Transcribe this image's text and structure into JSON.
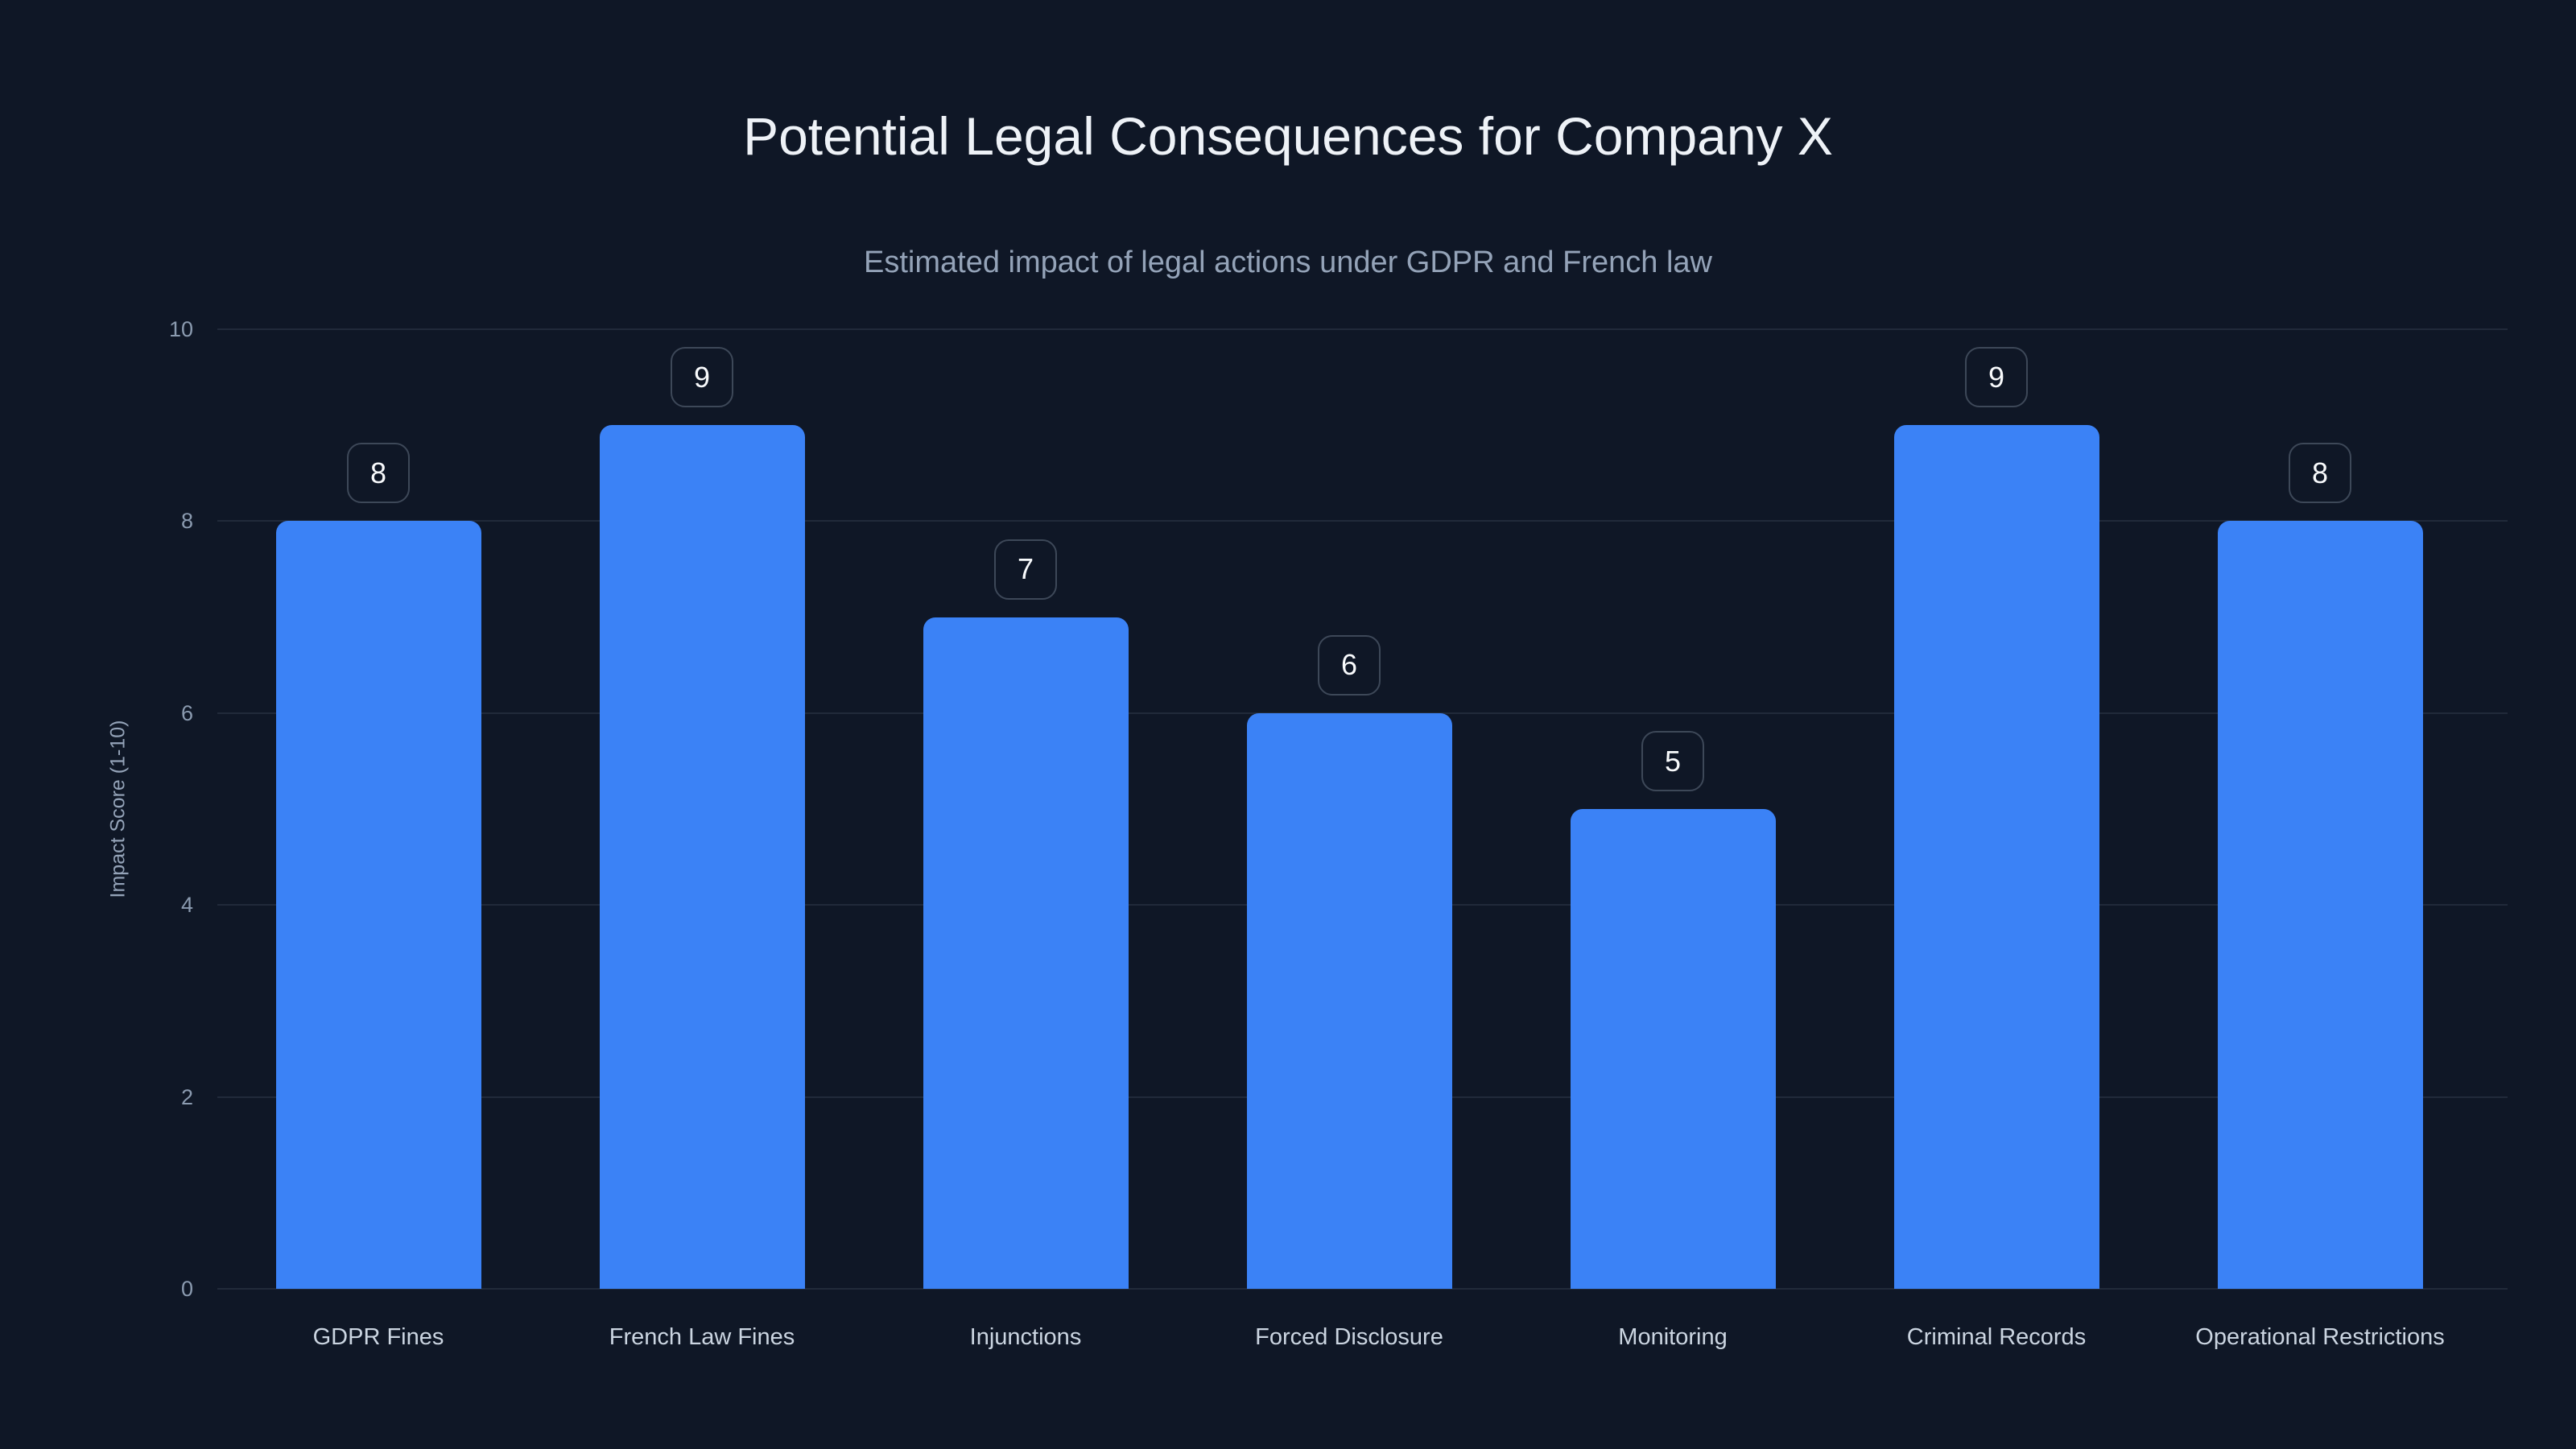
{
  "page": {
    "background_color": "#0f1726"
  },
  "chart_data": {
    "type": "bar",
    "title": "Potential Legal Consequences for Company X",
    "subtitle": "Estimated impact of legal actions under GDPR and French law",
    "categories": [
      "GDPR Fines",
      "French Law Fines",
      "Injunctions",
      "Forced Disclosure",
      "Monitoring",
      "Criminal Records",
      "Operational Restrictions"
    ],
    "values": [
      8,
      9,
      7,
      6,
      5,
      9,
      8
    ],
    "value_labels": [
      "8",
      "9",
      "7",
      "6",
      "5",
      "9",
      "8"
    ],
    "xlabel": "",
    "ylabel": "Impact Score (1-10)",
    "ylim": [
      0,
      10
    ],
    "yticks": [
      0,
      2,
      4,
      6,
      8,
      10
    ],
    "grid": true,
    "legend": "none",
    "bar_color": "#3b82f6",
    "title_color": "#eef2f7",
    "subtitle_color": "#94a3b8",
    "tick_color": "#8b9bb0",
    "x_label_color": "#cbd5e1",
    "gridline_color": "rgba(148,163,184,0.14)",
    "value_box_border_color": "rgba(148,163,184,0.35)",
    "value_box_text_color": "#f8fafc"
  }
}
